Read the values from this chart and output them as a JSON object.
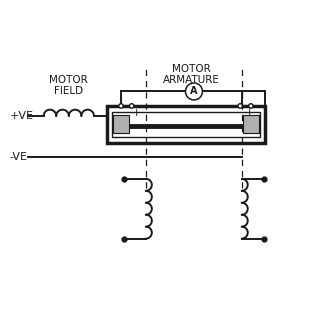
{
  "bg_color": "#ffffff",
  "line_color": "#1a1a1a",
  "motor_field_label": [
    "MOTOR",
    "FIELD"
  ],
  "motor_armature_label": [
    "MOTOR",
    "ARMATURE"
  ],
  "plus_ve_label": "+VE",
  "minus_ve_label": "-VE",
  "ammeter_label": "A"
}
